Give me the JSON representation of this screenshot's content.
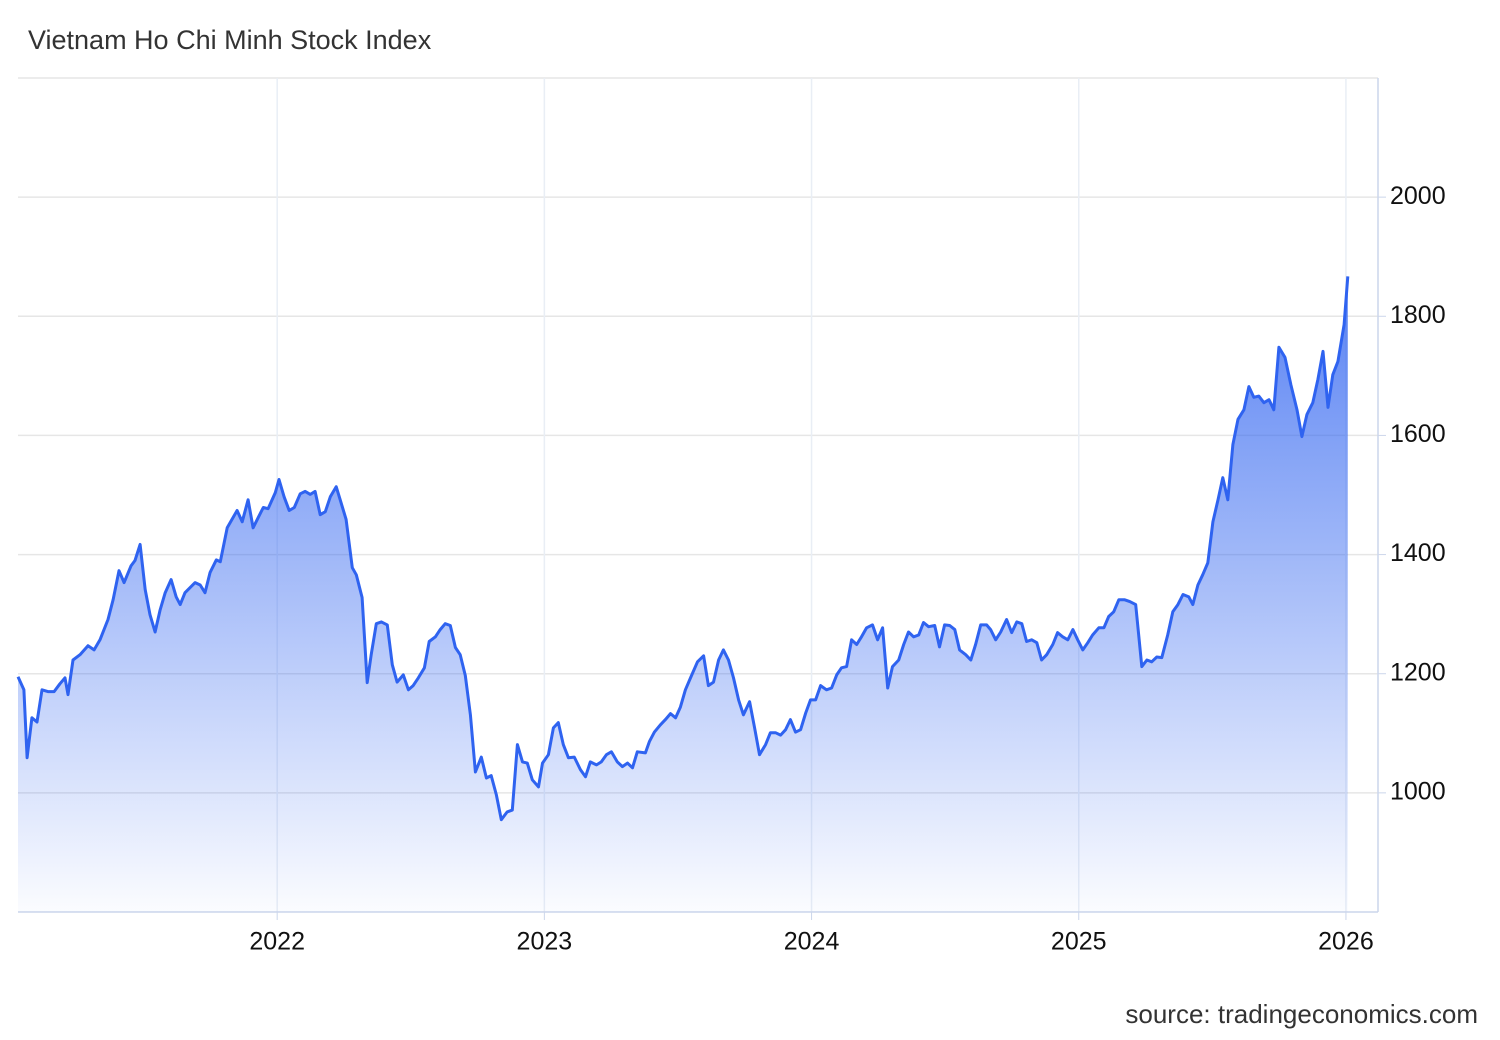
{
  "chart_data": {
    "type": "area",
    "title": "Vietnam Ho Chi Minh Stock Index",
    "source": "source: tradingeconomics.com",
    "color": "#2f63f0",
    "grid": true,
    "xlim": [
      2021.03,
      2026.12
    ],
    "xticks": [
      2022,
      2023,
      2024,
      2025,
      2026
    ],
    "ylim": [
      800,
      2200
    ],
    "yticks": [
      1000,
      1200,
      1400,
      1600,
      1800,
      2000
    ],
    "x": [
      2021.03,
      2021.052,
      2021.064,
      2021.082,
      2021.101,
      2021.12,
      2021.142,
      2021.165,
      2021.187,
      2021.206,
      2021.217,
      2021.236,
      2021.262,
      2021.292,
      2021.315,
      2021.337,
      2021.367,
      2021.386,
      2021.408,
      2021.427,
      2021.453,
      2021.468,
      2021.487,
      2021.506,
      2021.524,
      2021.543,
      2021.562,
      2021.581,
      2021.603,
      2021.622,
      2021.637,
      2021.655,
      2021.693,
      2021.712,
      2021.73,
      2021.749,
      2021.772,
      2021.787,
      2021.813,
      2021.831,
      2021.85,
      2021.869,
      2021.891,
      2021.91,
      2021.929,
      2021.948,
      2021.966,
      2021.993,
      2022.007,
      2022.026,
      2022.045,
      2022.064,
      2022.086,
      2022.105,
      2022.124,
      2022.142,
      2022.161,
      2022.18,
      2022.199,
      2022.221,
      2022.236,
      2022.258,
      2022.281,
      2022.296,
      2022.318,
      2022.337,
      2022.352,
      2022.371,
      2022.39,
      2022.412,
      2022.431,
      2022.449,
      2022.472,
      2022.491,
      2022.509,
      2022.528,
      2022.551,
      2022.569,
      2022.592,
      2022.61,
      2022.629,
      2022.648,
      2022.667,
      2022.685,
      2022.704,
      2022.723,
      2022.742,
      2022.764,
      2022.783,
      2022.801,
      2022.82,
      2022.839,
      2022.861,
      2022.88,
      2022.899,
      2022.918,
      2022.936,
      2022.955,
      2022.978,
      2022.993,
      2023.015,
      2023.034,
      2023.052,
      2023.071,
      2023.09,
      2023.112,
      2023.135,
      2023.154,
      2023.172,
      2023.195,
      2023.213,
      2023.232,
      2023.251,
      2023.273,
      2023.292,
      2023.311,
      2023.33,
      2023.348,
      2023.378,
      2023.393,
      2023.412,
      2023.434,
      2023.453,
      2023.472,
      2023.491,
      2023.509,
      2023.528,
      2023.547,
      2023.573,
      2023.596,
      2023.614,
      2023.633,
      2023.652,
      2023.67,
      2023.689,
      2023.708,
      2023.727,
      2023.745,
      2023.768,
      2023.787,
      2023.805,
      2023.828,
      2023.846,
      2023.865,
      2023.884,
      2023.903,
      2023.921,
      2023.94,
      2023.959,
      2023.978,
      2023.996,
      2024.015,
      2024.034,
      2024.056,
      2024.075,
      2024.094,
      2024.112,
      2024.131,
      2024.15,
      2024.169,
      2024.187,
      2024.206,
      2024.228,
      2024.247,
      2024.266,
      2024.285,
      2024.303,
      2024.326,
      2024.345,
      2024.363,
      2024.382,
      2024.401,
      2024.419,
      2024.438,
      2024.461,
      2024.479,
      2024.498,
      2024.517,
      2024.536,
      2024.554,
      2024.577,
      2024.596,
      2024.614,
      2024.633,
      2024.655,
      2024.67,
      2024.689,
      2024.708,
      2024.73,
      2024.749,
      2024.768,
      2024.787,
      2024.805,
      2024.824,
      2024.843,
      2024.861,
      2024.88,
      2024.903,
      2024.921,
      2024.94,
      2024.959,
      2024.978,
      2024.996,
      2025.015,
      2025.034,
      2025.052,
      2025.075,
      2025.094,
      2025.112,
      2025.131,
      2025.15,
      2025.172,
      2025.191,
      2025.213,
      2025.236,
      2025.255,
      2025.273,
      2025.292,
      2025.311,
      2025.333,
      2025.352,
      2025.371,
      2025.39,
      2025.412,
      2025.427,
      2025.446,
      2025.464,
      2025.483,
      2025.502,
      2025.521,
      2025.539,
      2025.558,
      2025.577,
      2025.596,
      2025.618,
      2025.637,
      2025.655,
      2025.674,
      2025.693,
      2025.712,
      2025.73,
      2025.749,
      2025.772,
      2025.794,
      2025.817,
      2025.835,
      2025.854,
      2025.876,
      2025.895,
      2025.914,
      2025.933,
      2025.951,
      2025.97,
      2025.993,
      2026.007
    ],
    "values": [
      1195,
      1173,
      1059,
      1126,
      1119,
      1173,
      1170,
      1170,
      1183,
      1193,
      1165,
      1223,
      1232,
      1247,
      1240,
      1257,
      1291,
      1324,
      1373,
      1353,
      1381,
      1390,
      1417,
      1341,
      1299,
      1270,
      1307,
      1336,
      1358,
      1329,
      1316,
      1336,
      1353,
      1349,
      1336,
      1370,
      1391,
      1388,
      1445,
      1459,
      1474,
      1455,
      1492,
      1445,
      1462,
      1479,
      1477,
      1504,
      1526,
      1497,
      1474,
      1479,
      1502,
      1506,
      1501,
      1506,
      1467,
      1472,
      1497,
      1514,
      1492,
      1459,
      1378,
      1366,
      1328,
      1185,
      1232,
      1284,
      1287,
      1282,
      1215,
      1186,
      1198,
      1173,
      1180,
      1193,
      1210,
      1254,
      1262,
      1274,
      1284,
      1281,
      1244,
      1232,
      1197,
      1131,
      1035,
      1060,
      1025,
      1029,
      997,
      955,
      968,
      971,
      1081,
      1052,
      1050,
      1022,
      1010,
      1050,
      1064,
      1109,
      1118,
      1081,
      1059,
      1060,
      1039,
      1027,
      1052,
      1047,
      1052,
      1064,
      1069,
      1052,
      1044,
      1050,
      1042,
      1069,
      1067,
      1086,
      1102,
      1114,
      1123,
      1133,
      1126,
      1144,
      1173,
      1193,
      1220,
      1230,
      1180,
      1186,
      1223,
      1240,
      1223,
      1193,
      1156,
      1131,
      1153,
      1109,
      1064,
      1081,
      1101,
      1101,
      1097,
      1106,
      1123,
      1102,
      1106,
      1134,
      1156,
      1156,
      1180,
      1173,
      1176,
      1198,
      1210,
      1212,
      1257,
      1249,
      1262,
      1277,
      1282,
      1257,
      1277,
      1176,
      1212,
      1223,
      1249,
      1270,
      1262,
      1265,
      1286,
      1279,
      1281,
      1245,
      1282,
      1281,
      1274,
      1240,
      1232,
      1223,
      1249,
      1282,
      1282,
      1274,
      1257,
      1270,
      1291,
      1269,
      1287,
      1284,
      1254,
      1257,
      1252,
      1223,
      1232,
      1249,
      1269,
      1262,
      1257,
      1274,
      1257,
      1240,
      1252,
      1265,
      1277,
      1277,
      1296,
      1304,
      1324,
      1324,
      1321,
      1316,
      1212,
      1223,
      1220,
      1228,
      1227,
      1265,
      1304,
      1316,
      1333,
      1329,
      1316,
      1349,
      1366,
      1386,
      1455,
      1492,
      1529,
      1492,
      1585,
      1627,
      1643,
      1682,
      1664,
      1666,
      1655,
      1660,
      1643,
      1748,
      1731,
      1685,
      1643,
      1598,
      1635,
      1655,
      1694,
      1741,
      1647,
      1702,
      1724,
      1786,
      1867
    ]
  }
}
